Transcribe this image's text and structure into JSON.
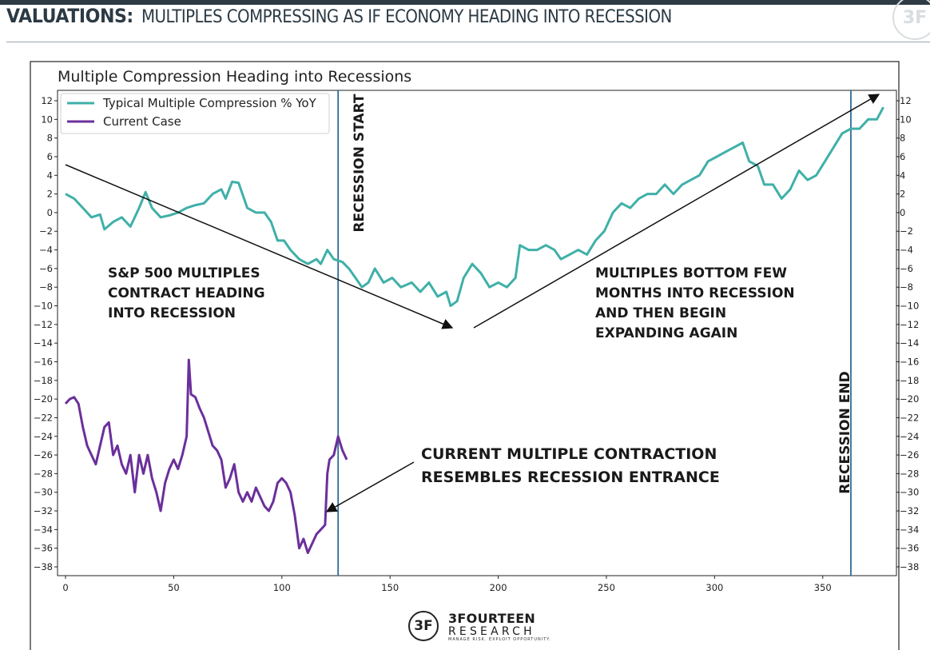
{
  "header": {
    "strong": "VALUATIONS:",
    "rest": "MULTIPLES COMPRESSING AS IF ECONOMY HEADING INTO RECESSION"
  },
  "brand": {
    "mark": "3F",
    "name": "3FOURTEEN",
    "sub": "RESEARCH",
    "tagline": "MANAGE RISK. EXPLOIT OPPORTUNITY."
  },
  "colors": {
    "typical": "#3fb0a8",
    "current": "#6b2f9b",
    "recession_line": "#2e6a96",
    "header": "#2b3a44"
  },
  "chart_data": {
    "type": "line",
    "title": "Multiple Compression Heading into Recessions",
    "xlim": [
      0,
      380
    ],
    "ylim": [
      -38,
      12
    ],
    "x_ticks": [
      0,
      50,
      100,
      150,
      200,
      250,
      300,
      350
    ],
    "y_ticks": [
      12,
      10,
      8,
      6,
      4,
      2,
      0,
      -2,
      -4,
      -6,
      -8,
      -10,
      -12,
      -14,
      -16,
      -18,
      -20,
      -22,
      -24,
      -26,
      -28,
      -30,
      -32,
      -34,
      -36,
      -38
    ],
    "legend_position": "top-left",
    "series": [
      {
        "name": "Typical Multiple Compression % YoY",
        "color": "#3fb0a8",
        "points": [
          [
            0,
            2
          ],
          [
            4,
            1.5
          ],
          [
            8,
            0.5
          ],
          [
            12,
            -0.5
          ],
          [
            16,
            -0.2
          ],
          [
            18,
            -1.8
          ],
          [
            22,
            -1
          ],
          [
            26,
            -0.5
          ],
          [
            30,
            -1.5
          ],
          [
            34,
            0.5
          ],
          [
            37,
            2.2
          ],
          [
            40,
            0.5
          ],
          [
            44,
            -0.5
          ],
          [
            48,
            -0.3
          ],
          [
            52,
            0
          ],
          [
            56,
            0.5
          ],
          [
            60,
            0.8
          ],
          [
            64,
            1
          ],
          [
            68,
            2
          ],
          [
            72,
            2.5
          ],
          [
            74,
            1.5
          ],
          [
            77,
            3.3
          ],
          [
            80,
            3.2
          ],
          [
            84,
            0.5
          ],
          [
            88,
            0
          ],
          [
            92,
            0
          ],
          [
            95,
            -1
          ],
          [
            98,
            -3
          ],
          [
            101,
            -3
          ],
          [
            104,
            -4
          ],
          [
            108,
            -5
          ],
          [
            112,
            -5.5
          ],
          [
            116,
            -5
          ],
          [
            118,
            -5.5
          ],
          [
            121,
            -4
          ],
          [
            124,
            -5
          ],
          [
            128,
            -5.3
          ],
          [
            131,
            -6
          ],
          [
            134,
            -7
          ],
          [
            137,
            -8
          ],
          [
            140,
            -7.5
          ],
          [
            143,
            -6
          ],
          [
            147,
            -7.5
          ],
          [
            151,
            -7
          ],
          [
            155,
            -8
          ],
          [
            160,
            -7.5
          ],
          [
            164,
            -8.5
          ],
          [
            168,
            -7.5
          ],
          [
            172,
            -9
          ],
          [
            176,
            -8.5
          ],
          [
            178,
            -10
          ],
          [
            181,
            -9.5
          ],
          [
            184,
            -7
          ],
          [
            188,
            -5.5
          ],
          [
            192,
            -6.5
          ],
          [
            196,
            -8
          ],
          [
            200,
            -7.5
          ],
          [
            204,
            -8
          ],
          [
            208,
            -7
          ],
          [
            210,
            -3.5
          ],
          [
            214,
            -4
          ],
          [
            218,
            -4
          ],
          [
            222,
            -3.5
          ],
          [
            226,
            -4
          ],
          [
            229,
            -5
          ],
          [
            233,
            -4.5
          ],
          [
            237,
            -4
          ],
          [
            241,
            -4.5
          ],
          [
            245,
            -3
          ],
          [
            249,
            -2
          ],
          [
            253,
            0
          ],
          [
            257,
            1
          ],
          [
            261,
            0.5
          ],
          [
            265,
            1.5
          ],
          [
            269,
            2
          ],
          [
            273,
            2
          ],
          [
            277,
            3
          ],
          [
            281,
            2
          ],
          [
            285,
            3
          ],
          [
            289,
            3.5
          ],
          [
            293,
            4
          ],
          [
            297,
            5.5
          ],
          [
            301,
            6
          ],
          [
            305,
            6.5
          ],
          [
            309,
            7
          ],
          [
            313,
            7.5
          ],
          [
            316,
            5.5
          ],
          [
            320,
            5
          ],
          [
            323,
            3
          ],
          [
            327,
            3
          ],
          [
            331,
            1.5
          ],
          [
            335,
            2.5
          ],
          [
            339,
            4.5
          ],
          [
            343,
            3.5
          ],
          [
            347,
            4
          ],
          [
            351,
            5.5
          ],
          [
            355,
            7
          ],
          [
            359,
            8.5
          ],
          [
            363,
            9
          ],
          [
            367,
            9
          ],
          [
            371,
            10
          ],
          [
            375,
            10
          ],
          [
            378,
            11.3
          ]
        ]
      },
      {
        "name": "Current Case",
        "color": "#6b2f9b",
        "points": [
          [
            0,
            -20.5
          ],
          [
            2,
            -20
          ],
          [
            4,
            -19.8
          ],
          [
            6,
            -20.5
          ],
          [
            8,
            -23
          ],
          [
            10,
            -25
          ],
          [
            12,
            -26
          ],
          [
            14,
            -27
          ],
          [
            16,
            -25
          ],
          [
            18,
            -23
          ],
          [
            20,
            -22.5
          ],
          [
            22,
            -26
          ],
          [
            24,
            -25
          ],
          [
            26,
            -27
          ],
          [
            28,
            -28
          ],
          [
            30,
            -26
          ],
          [
            32,
            -30
          ],
          [
            34,
            -26
          ],
          [
            36,
            -28
          ],
          [
            38,
            -26
          ],
          [
            40,
            -28.5
          ],
          [
            42,
            -30
          ],
          [
            44,
            -32
          ],
          [
            46,
            -29
          ],
          [
            48,
            -27.5
          ],
          [
            50,
            -26.5
          ],
          [
            52,
            -27.5
          ],
          [
            54,
            -26
          ],
          [
            56,
            -24
          ],
          [
            57,
            -15.8
          ],
          [
            58,
            -19.5
          ],
          [
            60,
            -19.8
          ],
          [
            62,
            -21
          ],
          [
            64,
            -22
          ],
          [
            66,
            -23.5
          ],
          [
            68,
            -25
          ],
          [
            70,
            -25.5
          ],
          [
            72,
            -26.5
          ],
          [
            74,
            -29.5
          ],
          [
            76,
            -28.5
          ],
          [
            78,
            -27
          ],
          [
            80,
            -30
          ],
          [
            82,
            -31
          ],
          [
            84,
            -30
          ],
          [
            86,
            -31
          ],
          [
            88,
            -29.5
          ],
          [
            90,
            -30.5
          ],
          [
            92,
            -31.5
          ],
          [
            94,
            -32
          ],
          [
            96,
            -31
          ],
          [
            98,
            -29
          ],
          [
            100,
            -28.5
          ],
          [
            102,
            -29
          ],
          [
            104,
            -30
          ],
          [
            106,
            -32.5
          ],
          [
            108,
            -36
          ],
          [
            110,
            -35
          ],
          [
            112,
            -36.5
          ],
          [
            114,
            -35.5
          ],
          [
            116,
            -34.5
          ],
          [
            118,
            -34
          ],
          [
            120,
            -33.5
          ],
          [
            121,
            -28
          ],
          [
            122,
            -26.5
          ],
          [
            124,
            -26
          ],
          [
            126,
            -24
          ],
          [
            128,
            -25.5
          ],
          [
            130,
            -26.5
          ]
        ]
      }
    ],
    "vertical_lines": [
      {
        "x": 126,
        "label": "RECESSION START"
      },
      {
        "x": 363,
        "label": "RECESSION END"
      }
    ],
    "annotations": {
      "left": [
        "S&P 500 MULTIPLES",
        "CONTRACT HEADING",
        "INTO RECESSION"
      ],
      "right": [
        "MULTIPLES BOTTOM FEW",
        "MONTHS INTO RECESSION",
        "AND THEN BEGIN",
        "EXPANDING AGAIN"
      ],
      "bottom": [
        "CURRENT MULTIPLE CONTRACTION",
        "RESEMBLES RECESSION ENTRANCE"
      ]
    }
  }
}
